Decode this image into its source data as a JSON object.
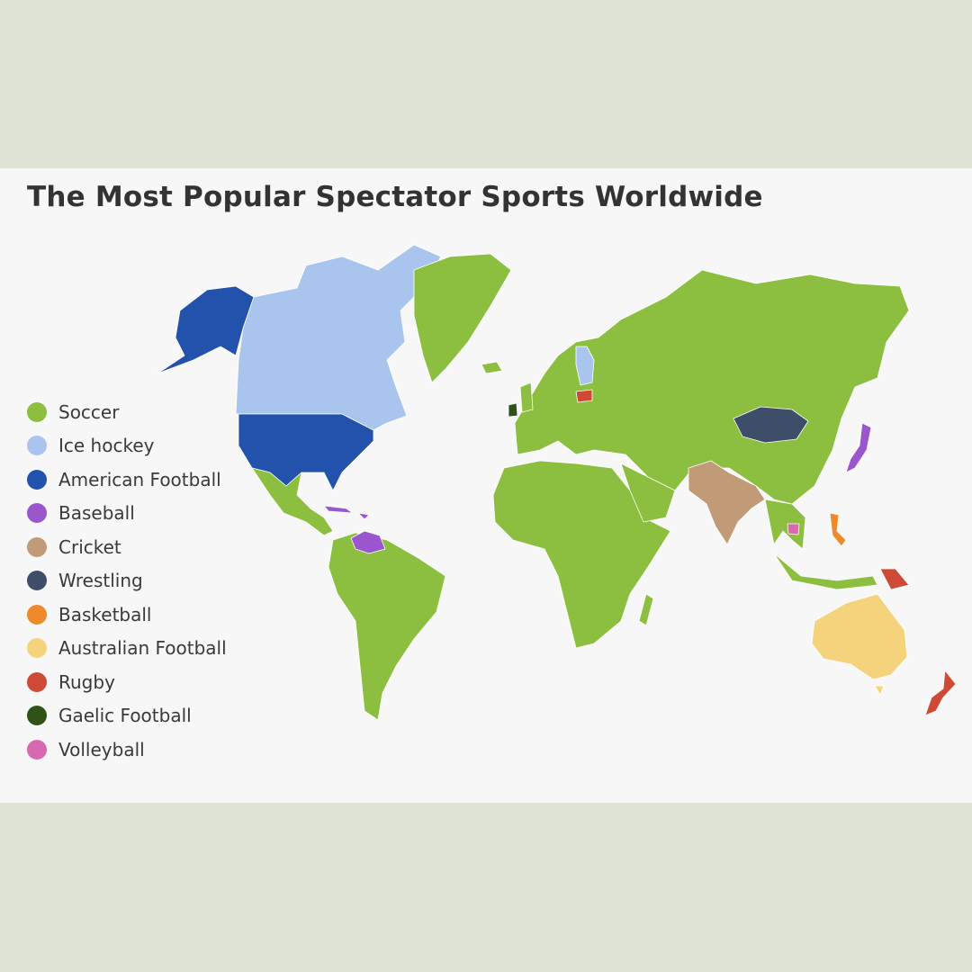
{
  "title": "The Most Popular Spectator Sports Worldwide",
  "legend": [
    {
      "sport": "soccer",
      "label": "Soccer",
      "color": "#8cbf3f"
    },
    {
      "sport": "ice_hockey",
      "label": "Ice hockey",
      "color": "#a9c5ee"
    },
    {
      "sport": "american_football",
      "label": "American Football",
      "color": "#2352ad"
    },
    {
      "sport": "baseball",
      "label": "Baseball",
      "color": "#9a56cc"
    },
    {
      "sport": "cricket",
      "label": "Cricket",
      "color": "#c19a78"
    },
    {
      "sport": "wrestling",
      "label": "Wrestling",
      "color": "#3f4e68"
    },
    {
      "sport": "basketball",
      "label": "Basketball",
      "color": "#ee8a2c"
    },
    {
      "sport": "australian_football",
      "label": "Australian Football",
      "color": "#f5d37c"
    },
    {
      "sport": "rugby",
      "label": "Rugby",
      "color": "#cf4a34"
    },
    {
      "sport": "gaelic_football",
      "label": "Gaelic Football",
      "color": "#2f5218"
    },
    {
      "sport": "volleyball",
      "label": "Volleyball",
      "color": "#d868b0"
    }
  ]
}
